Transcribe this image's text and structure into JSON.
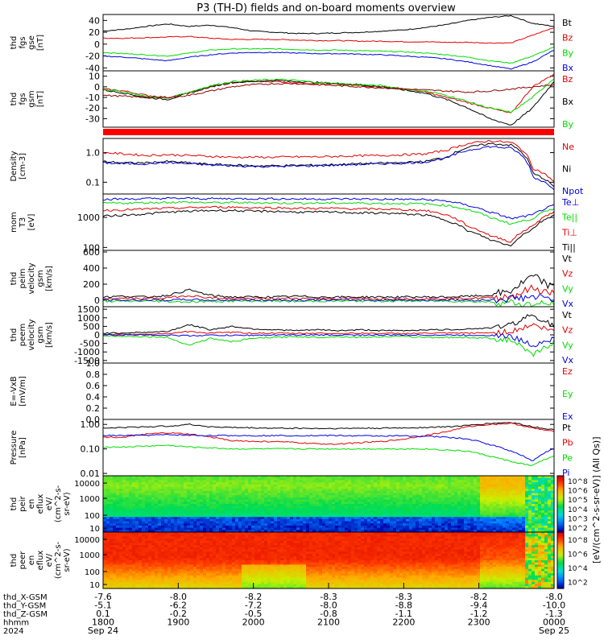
{
  "title": "P3 (TH-D) fields and on-board moments overview",
  "colors": {
    "black": "#000000",
    "red": "#e00000",
    "green": "#00dd00",
    "blue": "#0000e0",
    "darkred": "#900000"
  },
  "chart_data": [
    {
      "type": "line",
      "ylabel": "thd\nfgs\ngse\n[nT]",
      "yticks": [
        "40",
        "20",
        "0",
        "-20",
        "-40"
      ],
      "ylim": [
        -45,
        50
      ],
      "series": [
        {
          "name": "Bt",
          "color": "#000000",
          "values": [
            22,
            25,
            30,
            34,
            30,
            32,
            28,
            22,
            20,
            18,
            18,
            19,
            20,
            22,
            24,
            28,
            33,
            40,
            45,
            48,
            35,
            30
          ]
        },
        {
          "name": "Bz",
          "color": "#e00000",
          "values": [
            10,
            10,
            11,
            12,
            13,
            10,
            8,
            8,
            8,
            7,
            6,
            6,
            5,
            5,
            4,
            4,
            3,
            3,
            2,
            2,
            15,
            28
          ]
        },
        {
          "name": "By",
          "color": "#00dd00",
          "values": [
            -14,
            -16,
            -18,
            -20,
            -15,
            -10,
            -8,
            -8,
            -8,
            -9,
            -10,
            -10,
            -11,
            -12,
            -13,
            -15,
            -18,
            -22,
            -28,
            -32,
            -20,
            -5
          ]
        },
        {
          "name": "Bx",
          "color": "#0000e0",
          "values": [
            -20,
            -22,
            -25,
            -28,
            -22,
            -18,
            -15,
            -14,
            -14,
            -15,
            -16,
            -16,
            -17,
            -18,
            -20,
            -22,
            -25,
            -30,
            -36,
            -42,
            -30,
            -10
          ]
        }
      ]
    },
    {
      "type": "line",
      "ylabel": "thd\nfgs\ngsm\n[nT]",
      "yticks": [
        "10",
        "0",
        "-10",
        "-20",
        "-30"
      ],
      "ylim": [
        -38,
        15
      ],
      "series": [
        {
          "name": "Bz",
          "color": "#e00000",
          "values": [
            -2,
            -4,
            -8,
            -10,
            -6,
            0,
            4,
            5,
            5,
            4,
            3,
            2,
            1,
            0,
            -2,
            -5,
            -10,
            -15,
            -20,
            -25,
            0,
            12
          ]
        },
        {
          "name": "Bx",
          "color": "#000000",
          "values": [
            -3,
            -6,
            -10,
            -12,
            -6,
            0,
            4,
            5,
            6,
            5,
            4,
            3,
            2,
            0,
            -3,
            -6,
            -12,
            -20,
            -30,
            -36,
            -20,
            5
          ]
        },
        {
          "name": "By",
          "color": "#00dd00",
          "values": [
            -2,
            -5,
            -9,
            -11,
            -5,
            1,
            5,
            6,
            7,
            6,
            4,
            3,
            2,
            1,
            -2,
            -4,
            -8,
            -14,
            -20,
            -24,
            -10,
            8
          ]
        },
        {
          "name": "",
          "color": "#900000",
          "values": [
            -8,
            -9,
            -10,
            -10,
            -8,
            -4,
            0,
            2,
            3,
            3,
            2,
            1,
            0,
            -1,
            -2,
            -3,
            -4,
            -5,
            -4,
            -2,
            0,
            2
          ]
        }
      ]
    },
    {
      "type": "line",
      "ylabel": "Density\n[cm-3]",
      "yticks": [
        "1.0",
        "0.1"
      ],
      "ylim": [
        0.04,
        3.0
      ],
      "scale": "log",
      "series": [
        {
          "name": "Ne",
          "color": "#e00000",
          "values": [
            1.0,
            0.9,
            0.8,
            0.85,
            0.8,
            0.75,
            0.7,
            0.7,
            0.7,
            0.72,
            0.72,
            0.75,
            0.78,
            0.8,
            0.85,
            0.9,
            1.2,
            2.0,
            2.5,
            2.2,
            0.3,
            0.1
          ]
        },
        {
          "name": "Ni",
          "color": "#000000",
          "values": [
            0.5,
            0.45,
            0.45,
            0.5,
            0.45,
            0.4,
            0.38,
            0.36,
            0.36,
            0.37,
            0.38,
            0.4,
            0.42,
            0.44,
            0.46,
            0.5,
            0.7,
            1.5,
            2.0,
            1.8,
            0.2,
            0.07
          ]
        },
        {
          "name": "Npot",
          "color": "#0000e0",
          "values": [
            0.45,
            0.42,
            0.42,
            0.46,
            0.42,
            0.38,
            0.36,
            0.34,
            0.34,
            0.35,
            0.36,
            0.38,
            0.4,
            0.42,
            0.44,
            0.48,
            0.65,
            1.2,
            1.6,
            1.4,
            0.15,
            0.06
          ]
        }
      ]
    },
    {
      "type": "line",
      "ylabel": "mom\nT3\n[eV]",
      "yticks": [
        "1000",
        "100"
      ],
      "ylim": [
        80,
        6000
      ],
      "scale": "log",
      "series": [
        {
          "name": "Te⊥",
          "color": "#0000e0",
          "values": [
            4000,
            4100,
            4200,
            4300,
            4300,
            4200,
            4200,
            4200,
            4200,
            4100,
            4100,
            4100,
            4100,
            4000,
            4000,
            3900,
            3500,
            2500,
            1500,
            900,
            1200,
            2500
          ]
        },
        {
          "name": "Te||",
          "color": "#00dd00",
          "values": [
            3000,
            3000,
            3100,
            3200,
            3200,
            3100,
            3100,
            3100,
            3000,
            3000,
            3000,
            3000,
            3000,
            2900,
            2900,
            2800,
            2500,
            1800,
            1000,
            600,
            900,
            2000
          ]
        },
        {
          "name": "Ti⊥",
          "color": "#e00000",
          "values": [
            1700,
            1800,
            1900,
            2000,
            2100,
            2200,
            2200,
            2100,
            2100,
            2000,
            2000,
            2000,
            1900,
            1900,
            1800,
            1700,
            1200,
            500,
            250,
            150,
            500,
            1500
          ]
        },
        {
          "name": "Ti||",
          "color": "#000000",
          "values": [
            1100,
            1200,
            1300,
            1500,
            1600,
            1700,
            1700,
            1600,
            1600,
            1500,
            1500,
            1500,
            1400,
            1400,
            1300,
            1200,
            800,
            350,
            180,
            110,
            400,
            1200
          ]
        }
      ]
    },
    {
      "type": "line",
      "ylabel": "thd\npeim\nvelocity\ngsm\n[km/s]",
      "yticks": [
        "600",
        "400",
        "200",
        "0"
      ],
      "ylim": [
        -80,
        620
      ],
      "series": [
        {
          "name": "Vt",
          "color": "#000000",
          "values": [
            40,
            50,
            40,
            60,
            130,
            60,
            40,
            40,
            40,
            50,
            40,
            40,
            40,
            40,
            40,
            40,
            40,
            50,
            60,
            120,
            300,
            150
          ]
        },
        {
          "name": "Vz",
          "color": "#e00000",
          "values": [
            20,
            25,
            20,
            30,
            60,
            30,
            20,
            20,
            20,
            25,
            20,
            20,
            20,
            20,
            20,
            20,
            20,
            25,
            30,
            50,
            150,
            80
          ]
        },
        {
          "name": "Vy",
          "color": "#00dd00",
          "values": [
            -10,
            -15,
            -10,
            -15,
            -20,
            -15,
            -10,
            -10,
            -10,
            -15,
            -10,
            -10,
            -10,
            -10,
            -10,
            -10,
            -10,
            -15,
            -20,
            -30,
            -60,
            -40
          ]
        },
        {
          "name": "Vx",
          "color": "#0000e0",
          "values": [
            5,
            0,
            5,
            0,
            10,
            0,
            5,
            0,
            5,
            0,
            5,
            0,
            5,
            0,
            5,
            0,
            5,
            0,
            5,
            20,
            40,
            10
          ]
        }
      ]
    },
    {
      "type": "line",
      "ylabel": "thd\npeem\nvelocity\ngsm\n[km/s]",
      "yticks": [
        "1500",
        "1000",
        "500",
        "0",
        "-500",
        "-1000",
        "-1500"
      ],
      "ylim": [
        -1650,
        1650
      ],
      "series": [
        {
          "name": "Vt",
          "color": "#000000",
          "values": [
            100,
            120,
            150,
            200,
            600,
            300,
            500,
            350,
            300,
            250,
            300,
            250,
            300,
            250,
            250,
            300,
            300,
            350,
            400,
            600,
            1200,
            500
          ]
        },
        {
          "name": "Vz",
          "color": "#e00000",
          "values": [
            0,
            20,
            50,
            80,
            200,
            100,
            150,
            100,
            100,
            80,
            100,
            80,
            100,
            80,
            80,
            100,
            100,
            100,
            120,
            200,
            600,
            200
          ]
        },
        {
          "name": "Vy",
          "color": "#00dd00",
          "values": [
            -50,
            -80,
            -100,
            -150,
            -600,
            -200,
            -400,
            -200,
            -150,
            -100,
            -150,
            -100,
            -150,
            -100,
            -100,
            -150,
            -150,
            -150,
            -200,
            -300,
            -1200,
            -400
          ]
        },
        {
          "name": "Vx",
          "color": "#0000e0",
          "values": [
            0,
            -10,
            10,
            -20,
            -50,
            -20,
            -30,
            -20,
            -10,
            -10,
            -10,
            -10,
            -10,
            -10,
            -10,
            -10,
            -10,
            -20,
            -20,
            -100,
            -600,
            -200
          ]
        }
      ]
    },
    {
      "type": "line",
      "ylabel": "E=-VxB\n[mV/m]",
      "yticks": [
        "1.0",
        "0.8",
        "0.6",
        "0.4",
        "0.2",
        "0.0"
      ],
      "ylim": [
        0,
        1.0
      ],
      "series": [
        {
          "name": "Ez",
          "color": "#e00000",
          "values": []
        },
        {
          "name": "Ey",
          "color": "#00dd00",
          "values": []
        },
        {
          "name": "Ex",
          "color": "#0000e0",
          "values": []
        }
      ]
    },
    {
      "type": "line",
      "ylabel": "Pressure\n[nPa]",
      "yticks": [
        "1.00",
        "0.10",
        "0.01"
      ],
      "ylim": [
        0.008,
        1.6
      ],
      "scale": "log",
      "series": [
        {
          "name": "Pt",
          "color": "#000000",
          "values": [
            0.7,
            0.75,
            0.8,
            0.85,
            1.0,
            0.8,
            0.75,
            0.72,
            0.7,
            0.7,
            0.68,
            0.68,
            0.7,
            0.7,
            0.72,
            0.75,
            0.8,
            0.9,
            1.1,
            1.2,
            0.8,
            0.6
          ]
        },
        {
          "name": "Pb",
          "color": "#e00000",
          "values": [
            0.3,
            0.3,
            0.4,
            0.45,
            0.4,
            0.3,
            0.22,
            0.2,
            0.2,
            0.18,
            0.16,
            0.16,
            0.18,
            0.2,
            0.25,
            0.35,
            0.5,
            0.8,
            1.0,
            1.1,
            0.7,
            0.5
          ]
        },
        {
          "name": "Pe",
          "color": "#00dd00",
          "values": [
            0.12,
            0.12,
            0.13,
            0.14,
            0.12,
            0.11,
            0.1,
            0.1,
            0.1,
            0.1,
            0.1,
            0.1,
            0.1,
            0.1,
            0.1,
            0.1,
            0.09,
            0.08,
            0.05,
            0.03,
            0.02,
            0.05
          ]
        },
        {
          "name": "Pi",
          "color": "#0000e0",
          "values": [
            0.35,
            0.35,
            0.36,
            0.38,
            0.36,
            0.35,
            0.35,
            0.35,
            0.35,
            0.35,
            0.35,
            0.35,
            0.34,
            0.34,
            0.34,
            0.33,
            0.3,
            0.25,
            0.15,
            0.08,
            0.03,
            0.1
          ]
        }
      ]
    },
    {
      "type": "heatmap",
      "ylabel": "thd\npeir\nen\neflux\neV/\n(cm^2-s-\nsr-eV)",
      "yticks": [
        "10000",
        "1000",
        "100",
        "10"
      ],
      "colorbar_ticks": [
        "10^8",
        "10^6",
        "10^5",
        "10^4",
        "10^3",
        "10^2"
      ]
    },
    {
      "type": "heatmap",
      "ylabel": "thd\npeer\nen\neflux\neV/\n(cm^2-s-\nsr-eV)",
      "yticks": [
        "10000",
        "1000",
        "100",
        "10"
      ],
      "colorbar_ticks": [
        "10^8",
        "10^6",
        "10^4",
        "10^2"
      ]
    }
  ],
  "colorbar_label": "[eV/(cm^2-s-sr-eV)] (All Qs)]",
  "xaxis": {
    "rows": [
      {
        "label": "thd_X-GSM",
        "values": [
          "-7.6",
          "-8.0",
          "-8.2",
          "-8.3",
          "-8.3",
          "-8.2",
          "-8.0"
        ]
      },
      {
        "label": "thd_Y-GSM",
        "values": [
          "-5.1",
          "-6.2",
          "-7.2",
          "-8.0",
          "-8.8",
          "-9.4",
          "-10.0"
        ]
      },
      {
        "label": "thd_Z-GSM",
        "values": [
          "0.1",
          "-0.2",
          "-0.5",
          "-0.8",
          "-1.1",
          "-1.2",
          "-1.3"
        ]
      },
      {
        "label": "hhmm",
        "values": [
          "1800",
          "1900",
          "2000",
          "2100",
          "2200",
          "2300",
          "0000"
        ]
      },
      {
        "label": "2024",
        "values": [
          "Sep 24",
          "",
          "",
          "",
          "",
          "",
          "Sep 25"
        ]
      }
    ]
  }
}
